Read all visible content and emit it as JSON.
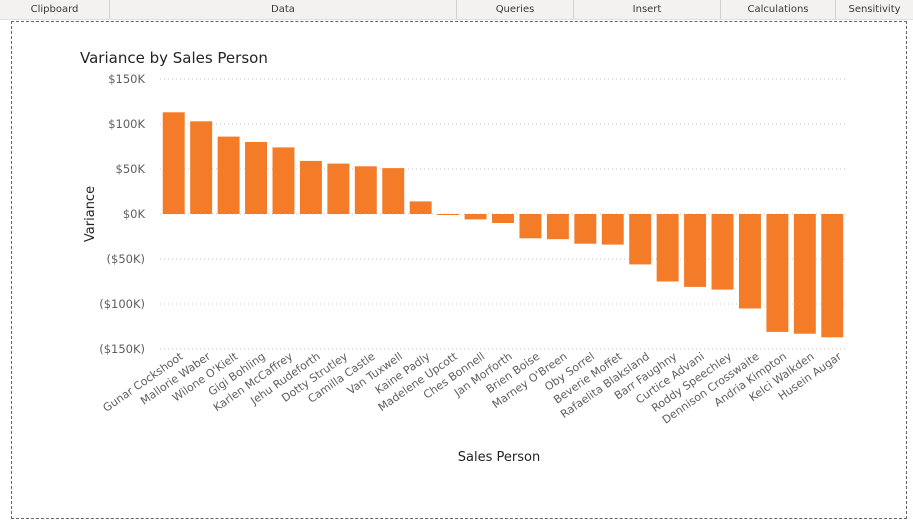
{
  "ribbon": {
    "groups": [
      "Clipboard",
      "Data",
      "Queries",
      "Insert",
      "Calculations",
      "Sensitivity"
    ]
  },
  "colors": {
    "bar": "#f47b27"
  },
  "chart_data": {
    "type": "bar",
    "title": "Variance by Sales Person",
    "xlabel": "Sales Person",
    "ylabel": "Variance",
    "ylim": [
      -150000,
      150000
    ],
    "yticks": [
      150000,
      100000,
      50000,
      0,
      -50000,
      -100000,
      -150000
    ],
    "ytick_labels": [
      "$150K",
      "$100K",
      "$50K",
      "$0K",
      "($50K)",
      "($100K)",
      "($150K)"
    ],
    "grid": true,
    "categories": [
      "Gunar Cockshoot",
      "Mallorie Waber",
      "Wilone O'Kielt",
      "Gigi Bohling",
      "Karlen McCaffrey",
      "Jehu Rudeforth",
      "Dotty Strutley",
      "Camilla Castle",
      "Van Tuxwell",
      "Kaine Padly",
      "Madelene Upcott",
      "Ches Bonnell",
      "Jan Morforth",
      "Brien Boise",
      "Marney O'Breen",
      "Oby Sorrel",
      "Beverie Moffet",
      "Rafaelita Blaksland",
      "Barr Faughny",
      "Curtice Advani",
      "Roddy Speechley",
      "Dennison Crosswaite",
      "Andria Kimpton",
      "Kelci Walkden",
      "Husein Augar"
    ],
    "values": [
      113000,
      103000,
      86000,
      80000,
      74000,
      59000,
      56000,
      53000,
      51000,
      14000,
      -1000,
      -6000,
      -10000,
      -27000,
      -28000,
      -33000,
      -34000,
      -56000,
      -75000,
      -81000,
      -84000,
      -105000,
      -131000,
      -133000,
      -137000
    ]
  }
}
